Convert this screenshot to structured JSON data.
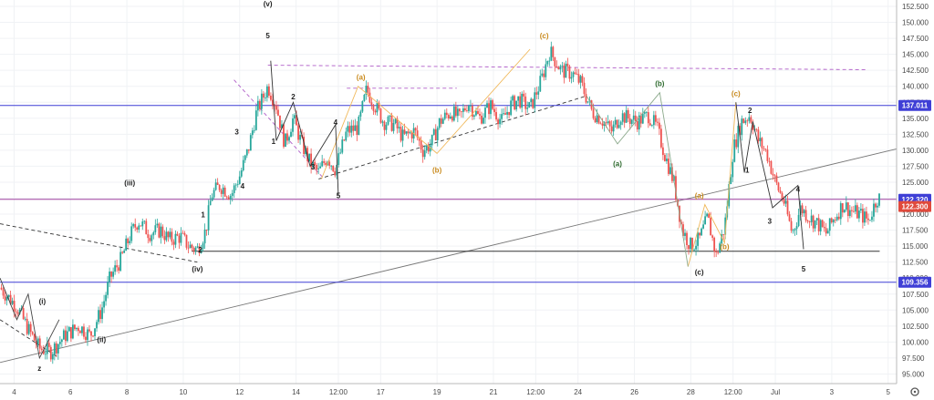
{
  "chart_data": {
    "type": "candlestick",
    "title": "",
    "xlabel": "",
    "ylabel": "",
    "ylim": [
      93.5,
      153.5
    ],
    "yticks": [
      95,
      97.5,
      100,
      102.5,
      105,
      107.5,
      110,
      112.5,
      115,
      117.5,
      120,
      122.5,
      125,
      127.5,
      130,
      132.5,
      135,
      137.5,
      140,
      142.5,
      145,
      147.5,
      150,
      152.5
    ],
    "ytick_labels": [
      "95.000",
      "97.500",
      "100.000",
      "102.500",
      "105.000",
      "107.500",
      "110.000",
      "112.500",
      "115.000",
      "117.500",
      "120.000",
      "122.500",
      "125.000",
      "127.500",
      "130.000",
      "132.500",
      "135.000",
      "137.500",
      "140.000",
      "142.500",
      "145.000",
      "147.500",
      "150.000",
      "152.500"
    ],
    "xlim": [
      4.0,
      35.8
    ],
    "xticks": [
      {
        "t": 4.5,
        "label": "4"
      },
      {
        "t": 6.5,
        "label": "6"
      },
      {
        "t": 8.5,
        "label": "8"
      },
      {
        "t": 10.5,
        "label": "10"
      },
      {
        "t": 12.5,
        "label": "12"
      },
      {
        "t": 14.5,
        "label": "14"
      },
      {
        "t": 16.0,
        "label": "12:00"
      },
      {
        "t": 17.5,
        "label": "17"
      },
      {
        "t": 19.5,
        "label": "19"
      },
      {
        "t": 21.5,
        "label": "21"
      },
      {
        "t": 23.0,
        "label": "12:00"
      },
      {
        "t": 24.5,
        "label": "24"
      },
      {
        "t": 26.5,
        "label": "26"
      },
      {
        "t": 28.5,
        "label": "28"
      },
      {
        "t": 30.0,
        "label": "12:00"
      },
      {
        "t": 31.5,
        "label": "Jul"
      },
      {
        "t": 33.5,
        "label": "3"
      },
      {
        "t": 35.5,
        "label": "5"
      }
    ],
    "price_path": [
      [
        4.0,
        108.5
      ],
      [
        4.6,
        105.5
      ],
      [
        5.0,
        102.0
      ],
      [
        5.4,
        99.0
      ],
      [
        5.8,
        98.5
      ],
      [
        6.3,
        101.0
      ],
      [
        6.8,
        102.5
      ],
      [
        7.2,
        101.0
      ],
      [
        7.6,
        105.0
      ],
      [
        7.9,
        110.0
      ],
      [
        8.3,
        113.0
      ],
      [
        8.6,
        116.5
      ],
      [
        8.9,
        119.0
      ],
      [
        9.3,
        117.0
      ],
      [
        9.7,
        117.5
      ],
      [
        10.0,
        116.0
      ],
      [
        10.4,
        116.5
      ],
      [
        10.7,
        115.0
      ],
      [
        11.0,
        114.5
      ],
      [
        11.3,
        117.5
      ],
      [
        11.5,
        123.0
      ],
      [
        11.8,
        124.5
      ],
      [
        12.2,
        123.0
      ],
      [
        12.5,
        126.0
      ],
      [
        12.8,
        130.0
      ],
      [
        13.1,
        136.0
      ],
      [
        13.5,
        140.0
      ],
      [
        13.8,
        137.0
      ],
      [
        14.1,
        131.0
      ],
      [
        14.4,
        135.0
      ],
      [
        14.7,
        131.0
      ],
      [
        15.0,
        128.0
      ],
      [
        15.3,
        126.5
      ],
      [
        15.6,
        129.0
      ],
      [
        15.9,
        127.0
      ],
      [
        16.3,
        133.0
      ],
      [
        16.7,
        133.5
      ],
      [
        17.0,
        139.5
      ],
      [
        17.3,
        137.0
      ],
      [
        17.6,
        134.5
      ],
      [
        18.0,
        134.0
      ],
      [
        18.3,
        132.0
      ],
      [
        18.7,
        133.0
      ],
      [
        19.0,
        130.0
      ],
      [
        19.3,
        131.0
      ],
      [
        19.6,
        134.5
      ],
      [
        20.0,
        136.0
      ],
      [
        20.3,
        135.0
      ],
      [
        20.6,
        137.5
      ],
      [
        21.0,
        135.0
      ],
      [
        21.4,
        137.0
      ],
      [
        21.8,
        134.5
      ],
      [
        22.1,
        137.0
      ],
      [
        22.4,
        138.0
      ],
      [
        22.8,
        136.5
      ],
      [
        23.2,
        141.0
      ],
      [
        23.5,
        145.5
      ],
      [
        23.9,
        142.5
      ],
      [
        24.3,
        142.0
      ],
      [
        24.6,
        140.5
      ],
      [
        25.0,
        136.0
      ],
      [
        25.3,
        135.0
      ],
      [
        25.7,
        133.0
      ],
      [
        26.0,
        135.5
      ],
      [
        26.3,
        135.0
      ],
      [
        26.6,
        134.5
      ],
      [
        27.0,
        135.5
      ],
      [
        27.3,
        133.5
      ],
      [
        27.6,
        129.0
      ],
      [
        27.9,
        125.0
      ],
      [
        28.2,
        117.5
      ],
      [
        28.5,
        115.0
      ],
      [
        28.8,
        116.0
      ],
      [
        29.1,
        119.5
      ],
      [
        29.4,
        113.5
      ],
      [
        29.7,
        118.0
      ],
      [
        30.0,
        130.0
      ],
      [
        30.3,
        134.5
      ],
      [
        30.6,
        135.5
      ],
      [
        30.9,
        131.5
      ],
      [
        31.2,
        129.5
      ],
      [
        31.5,
        125.0
      ],
      [
        31.8,
        122.0
      ],
      [
        32.1,
        117.0
      ],
      [
        32.4,
        121.0
      ],
      [
        32.7,
        119.5
      ],
      [
        33.0,
        118.5
      ],
      [
        33.3,
        117.0
      ],
      [
        33.6,
        119.5
      ],
      [
        33.9,
        121.5
      ],
      [
        34.2,
        120.5
      ],
      [
        34.5,
        120.0
      ],
      [
        34.8,
        119.0
      ],
      [
        35.1,
        122.5
      ]
    ],
    "horizontal_lines": [
      {
        "price": 137.011,
        "color": "#3f3fd6",
        "label": "137.011"
      },
      {
        "price": 122.32,
        "color": "#a040a0",
        "label": "122.320"
      },
      {
        "price": 109.356,
        "color": "#3f3fd6",
        "label": "109.356"
      },
      {
        "price": 114.2,
        "color": "#333333",
        "label": ""
      }
    ],
    "price_badges": [
      {
        "price": 137.011,
        "label": "137.011",
        "color": "#3f3fd6"
      },
      {
        "price": 122.32,
        "label": "122.320",
        "color": "#3f3fd6"
      },
      {
        "price": 121.2,
        "label": "122.300",
        "color": "#e04a3c"
      },
      {
        "price": 109.356,
        "label": "109.356",
        "color": "#3f3fd6"
      }
    ],
    "wave_labels": [
      {
        "text": "z",
        "t": 5.4,
        "p": 95.5,
        "color": "#222222"
      },
      {
        "text": "(i)",
        "t": 5.5,
        "p": 106.0,
        "color": "#222222"
      },
      {
        "text": "(ii)",
        "t": 7.6,
        "p": 100.0,
        "color": "#222222"
      },
      {
        "text": "(iii)",
        "t": 8.6,
        "p": 124.5,
        "color": "#222222"
      },
      {
        "text": "(iv)",
        "t": 11.0,
        "p": 111.0,
        "color": "#222222"
      },
      {
        "text": "(v)",
        "t": 13.5,
        "p": 152.5,
        "color": "#222222"
      },
      {
        "text": "5",
        "t": 13.5,
        "p": 147.5,
        "color": "#222222"
      },
      {
        "text": "1",
        "t": 11.2,
        "p": 119.5,
        "color": "#222222"
      },
      {
        "text": "2",
        "t": 11.1,
        "p": 114.0,
        "color": "#222222"
      },
      {
        "text": "3",
        "t": 12.4,
        "p": 132.5,
        "color": "#222222"
      },
      {
        "text": "4",
        "t": 12.6,
        "p": 124.0,
        "color": "#222222"
      },
      {
        "text": "2",
        "t": 14.4,
        "p": 138.0,
        "color": "#222222"
      },
      {
        "text": "1",
        "t": 13.7,
        "p": 131.0,
        "color": "#222222"
      },
      {
        "text": "4",
        "t": 15.9,
        "p": 134.0,
        "color": "#222222"
      },
      {
        "text": "3",
        "t": 15.1,
        "p": 127.0,
        "color": "#222222"
      },
      {
        "text": "5",
        "t": 16.0,
        "p": 122.5,
        "color": "#222222"
      },
      {
        "text": "(a)",
        "t": 16.8,
        "p": 141.0,
        "color": "#c98a1d"
      },
      {
        "text": "(b)",
        "t": 19.5,
        "p": 126.5,
        "color": "#c98a1d"
      },
      {
        "text": "(c)",
        "t": 23.3,
        "p": 147.5,
        "color": "#c98a1d"
      },
      {
        "text": "(a)",
        "t": 25.9,
        "p": 127.5,
        "color": "#2d6a2d"
      },
      {
        "text": "(b)",
        "t": 27.4,
        "p": 140.0,
        "color": "#2d6a2d"
      },
      {
        "text": "(a)",
        "t": 28.8,
        "p": 122.5,
        "color": "#c98a1d"
      },
      {
        "text": "(b)",
        "t": 29.7,
        "p": 114.5,
        "color": "#c98a1d"
      },
      {
        "text": "(c)",
        "t": 28.8,
        "p": 110.5,
        "color": "#222222"
      },
      {
        "text": "(c)",
        "t": 30.1,
        "p": 138.5,
        "color": "#c98a1d"
      },
      {
        "text": "2",
        "t": 30.6,
        "p": 135.8,
        "color": "#222222"
      },
      {
        "text": "1",
        "t": 30.5,
        "p": 126.5,
        "color": "#222222"
      },
      {
        "text": "3",
        "t": 31.3,
        "p": 118.5,
        "color": "#222222"
      },
      {
        "text": "4",
        "t": 32.3,
        "p": 123.5,
        "color": "#222222"
      },
      {
        "text": "5",
        "t": 32.5,
        "p": 111.0,
        "color": "#222222"
      }
    ],
    "colors": {
      "up": "#26a69a",
      "down": "#ef5350",
      "wave_orange": "#f0b85a",
      "channel_purple": "#b05ec8"
    }
  }
}
